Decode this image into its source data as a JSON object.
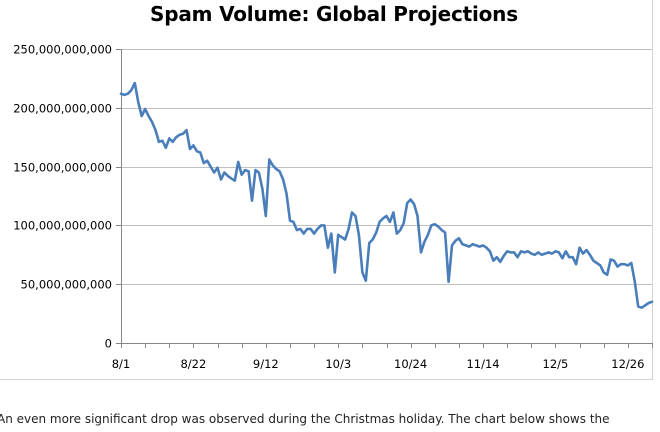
{
  "caption": "An even more significant drop was observed during the Christmas holiday. The chart below shows the",
  "colors": {
    "line": "#4a7ebb",
    "gridline": "#c0c0c0",
    "axis": "#868686",
    "text": "#000000"
  },
  "chart_data": {
    "type": "line",
    "title": "Spam Volume: Global Projections",
    "xlabel": "",
    "ylabel": "",
    "ylim": [
      0,
      250000000000
    ],
    "ytick_values": [
      0,
      50000000000,
      100000000000,
      150000000000,
      200000000000,
      250000000000
    ],
    "ytick_labels": [
      "0",
      "50,000,000,000",
      "100,000,000,000",
      "150,000,000,000",
      "200,000,000,000",
      "250,000,000,000"
    ],
    "xlim": [
      0,
      154
    ],
    "xtick_values": [
      0,
      21,
      42,
      63,
      84,
      105,
      126,
      147
    ],
    "xtick_labels": [
      "8/1",
      "8/22",
      "9/12",
      "10/3",
      "10/24",
      "11/14",
      "12/5",
      "12/26"
    ],
    "grid": "horizontal",
    "legend": "none",
    "series": [
      {
        "x": [
          0,
          1,
          2,
          3,
          4,
          5,
          6,
          7,
          8,
          9,
          10,
          11,
          12,
          13,
          14,
          15,
          16,
          17,
          18,
          19,
          20,
          21,
          22,
          23,
          24,
          25,
          26,
          27,
          28,
          29,
          30,
          31,
          32,
          33,
          34,
          35,
          36,
          37,
          38,
          39,
          40,
          41,
          42,
          43,
          44,
          45,
          46,
          47,
          48,
          49,
          50,
          51,
          52,
          53,
          54,
          55,
          56,
          57,
          58,
          59,
          60,
          61,
          62,
          63,
          64,
          65,
          66,
          67,
          68,
          69,
          70,
          71,
          72,
          73,
          74,
          75,
          76,
          77,
          78,
          79,
          80,
          81,
          82,
          83,
          84,
          85,
          86,
          87,
          88,
          89,
          90,
          91,
          92,
          93,
          94,
          95,
          96,
          97,
          98,
          99,
          100,
          101,
          102,
          103,
          104,
          105,
          106,
          107,
          108,
          109,
          110,
          111,
          112,
          113,
          114,
          115,
          116,
          117,
          118,
          119,
          120,
          121,
          122,
          123,
          124,
          125,
          126,
          127,
          128,
          129,
          130,
          131,
          132,
          133,
          134,
          135,
          136,
          137,
          138,
          139,
          140,
          141,
          142,
          143,
          144,
          145,
          146,
          147,
          148,
          149,
          150,
          151,
          152,
          153,
          154
        ],
        "values": [
          212000000000,
          211000000000,
          212000000000,
          215000000000,
          221000000000,
          205000000000,
          193000000000,
          199000000000,
          193000000000,
          188000000000,
          181000000000,
          171000000000,
          172000000000,
          166000000000,
          174000000000,
          171000000000,
          175000000000,
          177000000000,
          178000000000,
          181000000000,
          165000000000,
          168000000000,
          163000000000,
          162000000000,
          153000000000,
          155000000000,
          150000000000,
          145000000000,
          149000000000,
          139000000000,
          145000000000,
          142000000000,
          140000000000,
          138000000000,
          154000000000,
          143000000000,
          147000000000,
          146000000000,
          121000000000,
          147000000000,
          145000000000,
          131000000000,
          108000000000,
          156000000000,
          151000000000,
          148000000000,
          146000000000,
          139000000000,
          127000000000,
          104000000000,
          103000000000,
          96000000000,
          97000000000,
          93000000000,
          97000000000,
          97000000000,
          93000000000,
          97000000000,
          100000000000,
          100000000000,
          81000000000,
          93000000000,
          60000000000,
          92000000000,
          90000000000,
          88000000000,
          97000000000,
          111000000000,
          108000000000,
          92000000000,
          60000000000,
          53000000000,
          85000000000,
          88000000000,
          94000000000,
          103000000000,
          106000000000,
          108000000000,
          103000000000,
          111000000000,
          93000000000,
          96000000000,
          102000000000,
          119000000000,
          122000000000,
          118000000000,
          108000000000,
          77000000000,
          86000000000,
          92000000000,
          100000000000,
          101000000000,
          99000000000,
          96000000000,
          94000000000,
          52000000000,
          83000000000,
          87000000000,
          89000000000,
          84000000000,
          83000000000,
          82000000000,
          84000000000,
          83000000000,
          82000000000,
          83000000000,
          81000000000,
          78000000000,
          70000000000,
          73000000000,
          69000000000,
          74000000000,
          78000000000,
          77000000000,
          77000000000,
          73000000000,
          78000000000,
          77000000000,
          78000000000,
          76000000000,
          75000000000,
          77000000000,
          75000000000,
          76000000000,
          77000000000,
          76000000000,
          78000000000,
          77000000000,
          72000000000,
          78000000000,
          73000000000,
          73000000000,
          67000000000,
          81000000000,
          76000000000,
          79000000000,
          75000000000,
          70000000000,
          68000000000,
          66000000000,
          60000000000,
          58000000000,
          71000000000,
          70000000000,
          65000000000,
          67000000000,
          67000000000,
          66000000000,
          68000000000,
          52000000000,
          31000000000,
          30000000000,
          32000000000,
          34000000000,
          35000000000
        ]
      }
    ]
  }
}
